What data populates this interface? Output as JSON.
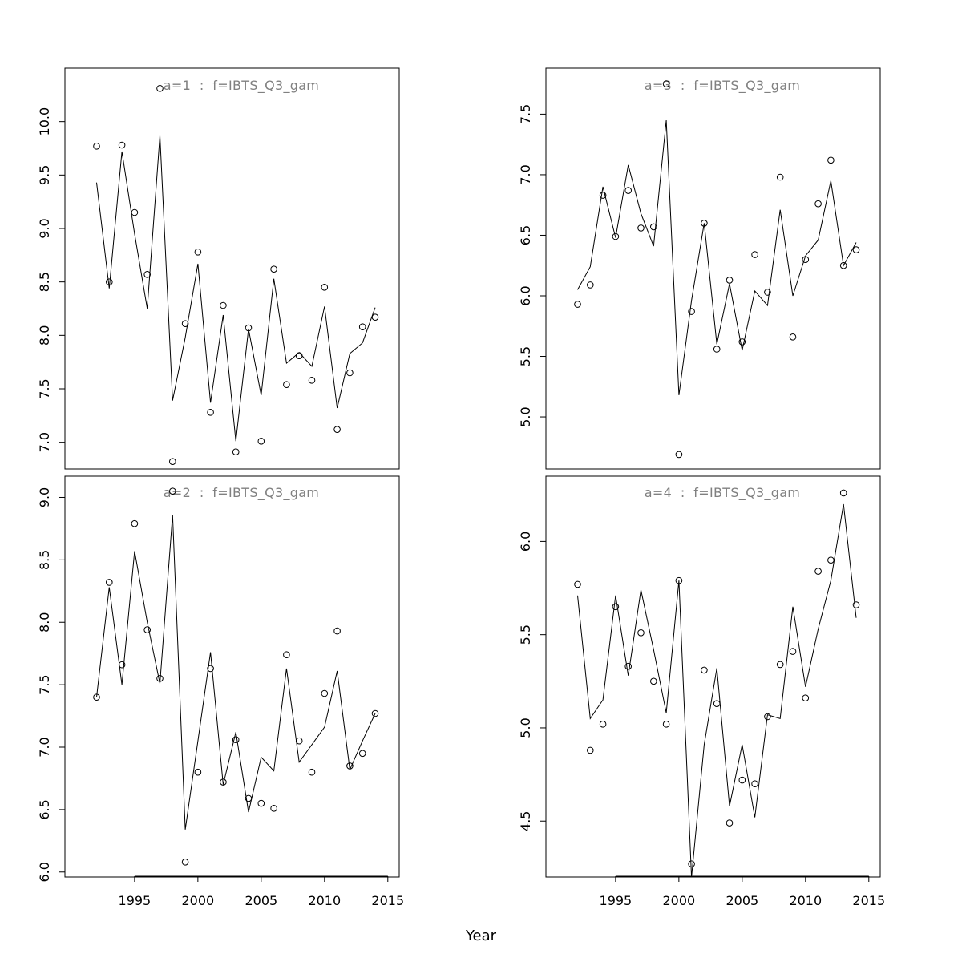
{
  "chart_data": [
    {
      "type": "line",
      "title": "a=1  :  f=IBTS_Q3_gam",
      "x": [
        1992,
        1993,
        1994,
        1995,
        1996,
        1997,
        1998,
        1999,
        2000,
        2001,
        2002,
        2003,
        2004,
        2005,
        2006,
        2007,
        2008,
        2009,
        2010,
        2011,
        2012,
        2013,
        2014
      ],
      "series": [
        {
          "kind": "points",
          "values": [
            9.77,
            8.5,
            9.78,
            9.15,
            8.57,
            10.31,
            6.82,
            8.11,
            8.78,
            7.28,
            8.28,
            6.91,
            8.07,
            7.01,
            8.62,
            7.54,
            7.81,
            7.58,
            8.45,
            7.12,
            7.65,
            8.08,
            8.17
          ]
        },
        {
          "kind": "line",
          "values": [
            9.43,
            8.44,
            9.72,
            8.95,
            8.25,
            9.87,
            7.39,
            7.98,
            8.67,
            7.37,
            8.19,
            7.01,
            8.06,
            7.44,
            8.53,
            7.74,
            7.84,
            7.71,
            8.27,
            7.32,
            7.83,
            7.93,
            8.26
          ]
        }
      ],
      "xlim": [
        1989.5,
        2015.9
      ],
      "ylim": [
        6.75,
        10.5
      ],
      "yticks": [
        "7.0",
        "7.5",
        "8.0",
        "8.5",
        "9.0",
        "9.5",
        "10.0"
      ],
      "xticks": []
    },
    {
      "type": "line",
      "title": "a=3  :  f=IBTS_Q3_gam",
      "x": [
        1992,
        1993,
        1994,
        1995,
        1996,
        1997,
        1998,
        1999,
        2000,
        2001,
        2002,
        2003,
        2004,
        2005,
        2006,
        2007,
        2008,
        2009,
        2010,
        2011,
        2012,
        2013,
        2014
      ],
      "series": [
        {
          "kind": "points",
          "values": [
            5.93,
            6.09,
            6.83,
            6.49,
            6.87,
            6.56,
            6.57,
            7.75,
            4.69,
            5.87,
            6.6,
            5.56,
            6.13,
            5.62,
            6.34,
            6.03,
            6.98,
            5.66,
            6.3,
            6.76,
            7.12,
            6.25,
            6.38
          ]
        },
        {
          "kind": "line",
          "values": [
            6.05,
            6.24,
            6.9,
            6.48,
            7.08,
            6.68,
            6.41,
            7.45,
            5.18,
            5.96,
            6.6,
            5.6,
            6.1,
            5.55,
            6.04,
            5.92,
            6.71,
            6.0,
            6.33,
            6.46,
            6.95,
            6.25,
            6.44
          ]
        }
      ],
      "xlim": [
        1989.5,
        2015.9
      ],
      "ylim": [
        4.57,
        7.88
      ],
      "yticks": [
        "5.0",
        "5.5",
        "6.0",
        "6.5",
        "7.0",
        "7.5"
      ],
      "xticks": []
    },
    {
      "type": "line",
      "title": "a=2  :  f=IBTS_Q3_gam",
      "x": [
        1992,
        1993,
        1994,
        1995,
        1996,
        1997,
        1998,
        1999,
        2000,
        2001,
        2002,
        2003,
        2004,
        2005,
        2006,
        2007,
        2008,
        2009,
        2010,
        2011,
        2012,
        2013,
        2014
      ],
      "series": [
        {
          "kind": "points",
          "values": [
            7.4,
            8.32,
            7.66,
            8.79,
            7.94,
            7.55,
            9.05,
            6.08,
            6.8,
            7.63,
            6.72,
            7.06,
            6.59,
            6.55,
            6.51,
            7.74,
            7.05,
            6.8,
            7.43,
            7.93,
            6.85,
            6.95,
            7.27
          ]
        },
        {
          "kind": "line",
          "values": [
            7.4,
            8.28,
            7.5,
            8.57,
            8.0,
            7.51,
            8.86,
            6.34,
            7.05,
            7.76,
            6.7,
            7.12,
            6.48,
            6.92,
            6.81,
            7.63,
            6.88,
            7.02,
            7.16,
            7.61,
            6.82,
            7.05,
            7.27
          ]
        }
      ],
      "xlim": [
        1989.5,
        2015.9
      ],
      "ylim": [
        5.96,
        9.17
      ],
      "yticks": [
        "6.0",
        "6.5",
        "7.0",
        "7.5",
        "8.0",
        "8.5",
        "9.0"
      ],
      "xticks": [
        "1995",
        "2000",
        "2005",
        "2010",
        "2015"
      ]
    },
    {
      "type": "line",
      "title": "a=4  :  f=IBTS_Q3_gam",
      "x": [
        1992,
        1993,
        1994,
        1995,
        1996,
        1997,
        1998,
        1999,
        2000,
        2001,
        2002,
        2003,
        2004,
        2005,
        2006,
        2007,
        2008,
        2009,
        2010,
        2011,
        2012,
        2013,
        2014
      ],
      "series": [
        {
          "kind": "points",
          "values": [
            5.77,
            4.88,
            5.02,
            5.65,
            5.33,
            5.51,
            5.25,
            5.02,
            5.79,
            4.27,
            5.31,
            5.13,
            4.49,
            4.72,
            4.7,
            5.06,
            5.34,
            5.41,
            5.16,
            5.84,
            5.9,
            6.26,
            5.66
          ]
        },
        {
          "kind": "line",
          "values": [
            5.71,
            5.05,
            5.15,
            5.71,
            5.28,
            5.74,
            5.42,
            5.08,
            5.79,
            4.2,
            4.91,
            5.32,
            4.58,
            4.91,
            4.52,
            5.07,
            5.05,
            5.65,
            5.22,
            5.53,
            5.79,
            6.2,
            5.59
          ]
        }
      ],
      "xlim": [
        1989.5,
        2015.9
      ],
      "ylim": [
        4.2,
        6.35
      ],
      "yticks": [
        "4.5",
        "5.0",
        "5.5",
        "6.0"
      ],
      "xticks": [
        "1995",
        "2000",
        "2005",
        "2010",
        "2015"
      ]
    }
  ],
  "xlabel": "Year"
}
